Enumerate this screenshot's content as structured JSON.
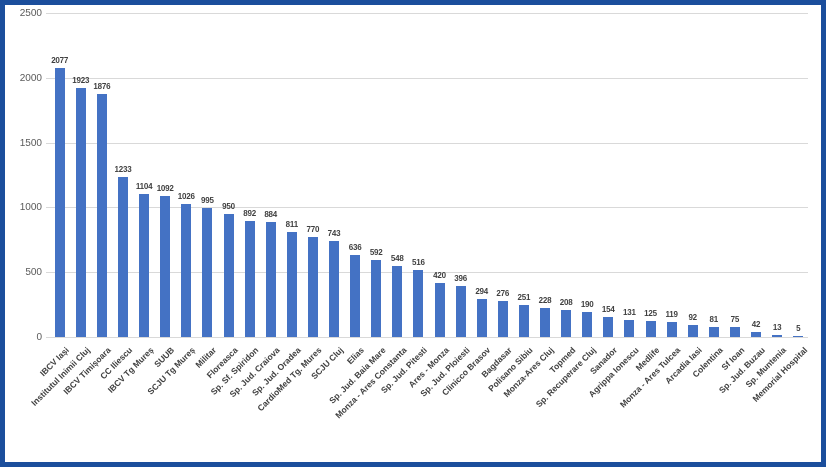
{
  "frame": {
    "border_color": "#1B4E9C",
    "background": "#FFFFFF"
  },
  "chart_data": {
    "type": "bar",
    "title": "",
    "xlabel": "",
    "ylabel": "",
    "categories": [
      "IBCV Iași",
      "Institutul Inimii Cluj",
      "IBCV Timișoara",
      "CC Iliescu",
      "IBCV Tg Mureș",
      "SUUB",
      "SCJU Tg Mureș",
      "Militar",
      "Floreasca",
      "Sp. Sf. Spiridon",
      "Sp. Jud. Craiova",
      "Sp. Jud. Oradea",
      "CardioMed Tg. Mures",
      "SCJU Cluj",
      "Elias",
      "Sp. Jud. Baia Mare",
      "Monza - Ares Constanta",
      "Sp. Jud. Pitesti",
      "Ares - Monza",
      "Sp. Jud. Ploiesti",
      "Clinicco Brasov",
      "Bagdasar",
      "Polisano Sibiu",
      "Monza-Ares Cluj",
      "Topmed",
      "Sp. Recuperare Cluj",
      "Sanador",
      "Agrippa Ionescu",
      "Medlife",
      "Monza - Ares Tulcea",
      "Arcadia Iasi",
      "Colentina",
      "Sf Ioan",
      "Sp. Jud. Buzau",
      "Sp. Muntenia",
      "Memorial Hospital"
    ],
    "values": [
      2077,
      1923,
      1876,
      1233,
      1104,
      1092,
      1026,
      995,
      950,
      892,
      884,
      811,
      770,
      743,
      636,
      592,
      548,
      516,
      420,
      396,
      294,
      276,
      251,
      228,
      208,
      190,
      154,
      131,
      125,
      119,
      92,
      81,
      75,
      42,
      13,
      5
    ],
    "ylim": [
      0,
      2500
    ],
    "yticks": [
      0,
      500,
      1000,
      1500,
      2000,
      2500
    ],
    "grid": true,
    "legend": "none",
    "data_labels": true,
    "x_label_rotation_deg": 45,
    "bar_color": "#4472C4",
    "gridline_color": "#D9D9D9",
    "axis_tick_color": "#595959",
    "data_label_color": "#404040",
    "x_label_color": "#404040"
  }
}
